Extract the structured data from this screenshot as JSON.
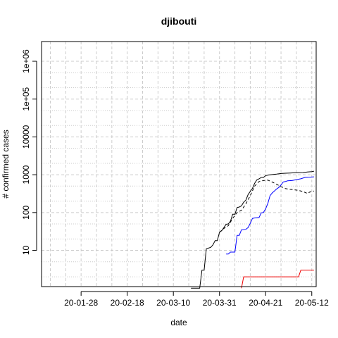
{
  "chart_data": {
    "type": "line",
    "title": "djibouti",
    "xlabel": "date",
    "ylabel": "# confirmed cases",
    "y_scale": "log",
    "grid": true,
    "x_range": [
      "2020-01-10",
      "2020-05-14"
    ],
    "y_range": [
      1.2,
      1000000
    ],
    "x_ticks": [
      {
        "date": "2020-01-28",
        "label": "20-01-28"
      },
      {
        "date": "2020-02-18",
        "label": "20-02-18"
      },
      {
        "date": "2020-03-10",
        "label": "20-03-10"
      },
      {
        "date": "2020-03-31",
        "label": "20-03-31"
      },
      {
        "date": "2020-04-21",
        "label": "20-04-21"
      },
      {
        "date": "2020-05-12",
        "label": "20-05-12"
      }
    ],
    "y_ticks": [
      {
        "value": 10,
        "label": "10"
      },
      {
        "value": 100,
        "label": "100"
      },
      {
        "value": 1000,
        "label": "1000"
      },
      {
        "value": 10000,
        "label": "10000"
      },
      {
        "value": 100000,
        "label": "1e+05"
      },
      {
        "value": 1000000,
        "label": "1e+06"
      }
    ],
    "series": [
      {
        "color": "#000000",
        "dash": "solid",
        "points": [
          [
            "2020-03-18",
            1
          ],
          [
            "2020-03-22",
            1
          ],
          [
            "2020-03-23",
            3
          ],
          [
            "2020-03-24",
            3
          ],
          [
            "2020-03-25",
            11
          ],
          [
            "2020-03-27",
            12
          ],
          [
            "2020-03-28",
            14
          ],
          [
            "2020-03-29",
            18
          ],
          [
            "2020-03-30",
            18
          ],
          [
            "2020-03-31",
            30
          ],
          [
            "2020-04-01",
            33
          ],
          [
            "2020-04-02",
            40
          ],
          [
            "2020-04-03",
            49
          ],
          [
            "2020-04-04",
            50
          ],
          [
            "2020-04-05",
            59
          ],
          [
            "2020-04-06",
            90
          ],
          [
            "2020-04-07",
            90
          ],
          [
            "2020-04-08",
            135
          ],
          [
            "2020-04-09",
            140
          ],
          [
            "2020-04-10",
            150
          ],
          [
            "2020-04-11",
            187
          ],
          [
            "2020-04-12",
            214
          ],
          [
            "2020-04-13",
            298
          ],
          [
            "2020-04-14",
            363
          ],
          [
            "2020-04-15",
            435
          ],
          [
            "2020-04-16",
            591
          ],
          [
            "2020-04-17",
            732
          ],
          [
            "2020-04-18",
            780
          ],
          [
            "2020-04-19",
            846
          ],
          [
            "2020-04-20",
            846
          ],
          [
            "2020-04-21",
            945
          ],
          [
            "2020-04-22",
            974
          ],
          [
            "2020-04-24",
            1008
          ],
          [
            "2020-04-26",
            1035
          ],
          [
            "2020-04-28",
            1077
          ],
          [
            "2020-04-30",
            1097
          ],
          [
            "2020-05-02",
            1112
          ],
          [
            "2020-05-04",
            1124
          ],
          [
            "2020-05-06",
            1133
          ],
          [
            "2020-05-08",
            1140
          ],
          [
            "2020-05-10",
            1180
          ],
          [
            "2020-05-12",
            1210
          ],
          [
            "2020-05-13",
            1240
          ]
        ]
      },
      {
        "color": "#000000",
        "dash": "dashed",
        "points": [
          [
            "2020-03-31",
            30
          ],
          [
            "2020-04-02",
            38
          ],
          [
            "2020-04-04",
            45
          ],
          [
            "2020-04-06",
            70
          ],
          [
            "2020-04-08",
            100
          ],
          [
            "2020-04-10",
            115
          ],
          [
            "2020-04-12",
            170
          ],
          [
            "2020-04-14",
            280
          ],
          [
            "2020-04-16",
            500
          ],
          [
            "2020-04-18",
            660
          ],
          [
            "2020-04-20",
            700
          ],
          [
            "2020-04-22",
            720
          ],
          [
            "2020-04-24",
            640
          ],
          [
            "2020-04-26",
            560
          ],
          [
            "2020-04-28",
            480
          ],
          [
            "2020-04-30",
            430
          ],
          [
            "2020-05-02",
            410
          ],
          [
            "2020-05-04",
            400
          ],
          [
            "2020-05-06",
            385
          ],
          [
            "2020-05-08",
            360
          ],
          [
            "2020-05-10",
            320
          ],
          [
            "2020-05-11",
            345
          ],
          [
            "2020-05-12",
            360
          ],
          [
            "2020-05-13",
            370
          ]
        ]
      },
      {
        "color": "#0000ff",
        "dash": "solid",
        "points": [
          [
            "2020-04-03",
            8
          ],
          [
            "2020-04-04",
            8
          ],
          [
            "2020-04-05",
            9
          ],
          [
            "2020-04-06",
            9
          ],
          [
            "2020-04-07",
            9
          ],
          [
            "2020-04-08",
            25
          ],
          [
            "2020-04-09",
            25
          ],
          [
            "2020-04-10",
            35
          ],
          [
            "2020-04-12",
            36
          ],
          [
            "2020-04-13",
            40
          ],
          [
            "2020-04-14",
            52
          ],
          [
            "2020-04-15",
            70
          ],
          [
            "2020-04-16",
            72
          ],
          [
            "2020-04-18",
            74
          ],
          [
            "2020-04-19",
            98
          ],
          [
            "2020-04-20",
            100
          ],
          [
            "2020-04-21",
            125
          ],
          [
            "2020-04-22",
            175
          ],
          [
            "2020-04-23",
            280
          ],
          [
            "2020-04-24",
            330
          ],
          [
            "2020-04-25",
            370
          ],
          [
            "2020-04-26",
            420
          ],
          [
            "2020-04-27",
            460
          ],
          [
            "2020-04-28",
            540
          ],
          [
            "2020-04-29",
            640
          ],
          [
            "2020-04-30",
            660
          ],
          [
            "2020-05-01",
            690
          ],
          [
            "2020-05-03",
            700
          ],
          [
            "2020-05-05",
            740
          ],
          [
            "2020-05-07",
            780
          ],
          [
            "2020-05-09",
            850
          ],
          [
            "2020-05-11",
            860
          ],
          [
            "2020-05-13",
            880
          ]
        ]
      },
      {
        "color": "#ee0000",
        "dash": "solid",
        "points": [
          [
            "2020-04-10",
            1
          ],
          [
            "2020-04-11",
            2
          ],
          [
            "2020-04-12",
            2
          ],
          [
            "2020-04-20",
            2
          ],
          [
            "2020-04-30",
            2
          ],
          [
            "2020-05-06",
            2
          ],
          [
            "2020-05-07",
            3
          ],
          [
            "2020-05-13",
            3
          ]
        ]
      }
    ]
  }
}
